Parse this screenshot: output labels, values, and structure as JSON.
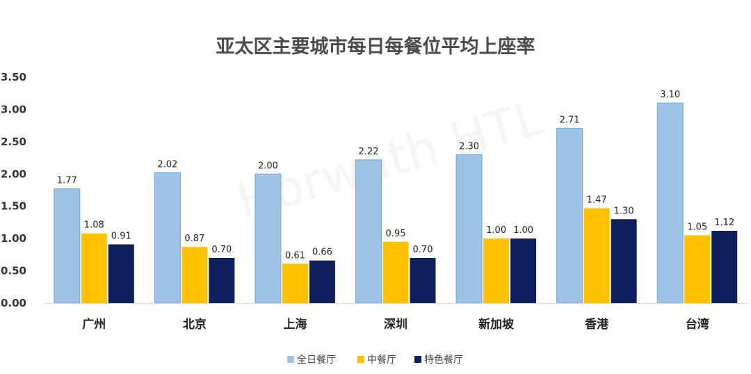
{
  "chart_data": {
    "type": "bar",
    "title": "亚太区主要城市每日每餐位平均上座率",
    "categories": [
      "广州",
      "北京",
      "上海",
      "深圳",
      "新加坡",
      "香港",
      "台湾"
    ],
    "series": [
      {
        "name": "全日餐厅",
        "color": "#9dc3e6",
        "values": [
          1.77,
          2.02,
          2.0,
          2.22,
          2.3,
          2.71,
          3.1
        ]
      },
      {
        "name": "中餐厅",
        "color": "#ffc000",
        "values": [
          1.08,
          0.87,
          0.61,
          0.95,
          1.0,
          1.47,
          1.05
        ]
      },
      {
        "name": "特色餐厅",
        "color": "#0d1f5c",
        "values": [
          0.91,
          0.7,
          0.66,
          0.7,
          1.0,
          1.3,
          1.12
        ]
      }
    ],
    "data_labels": [
      [
        "1.77",
        "2.02",
        "2.00",
        "2.22",
        "2.30",
        "2.71",
        "3.10"
      ],
      [
        "1.08",
        "0.87",
        "0.61",
        "0.95",
        "1.00",
        "1.47",
        "1.05"
      ],
      [
        "0.91",
        "0.70",
        "0.66",
        "0.70",
        "1.00",
        "1.30",
        "1.12"
      ]
    ],
    "ylim": [
      0,
      3.5
    ],
    "yticks": [
      "0.00",
      "0.50",
      "1.00",
      "1.50",
      "2.00",
      "2.50",
      "3.00",
      "3.50"
    ],
    "ytick_values": [
      0,
      0.5,
      1,
      1.5,
      2,
      2.5,
      3,
      3.5
    ],
    "legend_position": "bottom",
    "grid": false
  },
  "watermark": "Horwath HTL"
}
